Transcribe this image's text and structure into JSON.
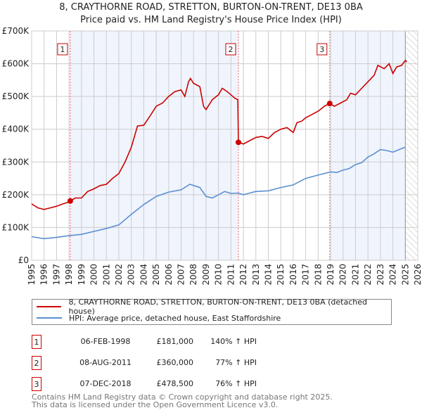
{
  "title_line1": "8, CRAYTHORNE ROAD, STRETTON, BURTON-ON-TRENT, DE13 0BA",
  "title_line2": "Price paid vs. HM Land Registry's House Price Index (HPI)",
  "legend": [
    {
      "label": "8, CRAYTHORNE ROAD, STRETTON, BURTON-ON-TRENT, DE13 0BA (detached house)",
      "color": "#cc0000"
    },
    {
      "label": "HPI: Average price, detached house, East Staffordshire",
      "color": "#5b8fd0"
    }
  ],
  "sales": [
    {
      "num": "1",
      "date": "06-FEB-1998",
      "price": "£181,000",
      "hpi": "140% ↑ HPI"
    },
    {
      "num": "2",
      "date": "08-AUG-2011",
      "price": "£360,000",
      "hpi": "77% ↑ HPI"
    },
    {
      "num": "3",
      "date": "07-DEC-2018",
      "price": "£478,500",
      "hpi": "76% ↑ HPI"
    }
  ],
  "footer_line1": "Contains HM Land Registry data © Crown copyright and database right 2025.",
  "footer_line2": "This data is licensed under the Open Government Licence v3.0.",
  "chart_data": {
    "type": "line",
    "xlim": [
      1995,
      2026
    ],
    "ylim": [
      0,
      700000
    ],
    "yticks": [
      0,
      100000,
      200000,
      300000,
      400000,
      500000,
      600000,
      700000
    ],
    "ytick_labels": [
      "£0",
      "£100K",
      "£200K",
      "£300K",
      "£400K",
      "£500K",
      "£600K",
      "£700K"
    ],
    "xticks": [
      1995,
      1996,
      1997,
      1998,
      1999,
      2000,
      2001,
      2002,
      2003,
      2004,
      2005,
      2006,
      2007,
      2008,
      2009,
      2010,
      2011,
      2012,
      2013,
      2014,
      2015,
      2016,
      2017,
      2018,
      2019,
      2020,
      2021,
      2022,
      2023,
      2024,
      2025,
      2026
    ],
    "grid": true,
    "hatch_from": 2025,
    "shaded_ranges": [
      [
        1998.1,
        2011.6
      ],
      [
        2018.93,
        2025
      ]
    ],
    "markers": [
      {
        "label": "1",
        "x": 1998.1,
        "y": 181000
      },
      {
        "label": "2",
        "x": 2011.6,
        "y": 360000
      },
      {
        "label": "3",
        "x": 2018.93,
        "y": 478500
      }
    ],
    "series": [
      {
        "name": "8, CRAYTHORNE ROAD (detached house)",
        "color": "#cc0000",
        "x": [
          1995,
          1995.5,
          1996,
          1996.5,
          1997,
          1997.5,
          1998,
          1998.1,
          1998.5,
          1999,
          1999.5,
          2000,
          2000.5,
          2001,
          2001.5,
          2002,
          2002.5,
          2003,
          2003.5,
          2004,
          2004.5,
          2005,
          2005.5,
          2006,
          2006.5,
          2007,
          2007.3,
          2007.6,
          2007.75,
          2008,
          2008.5,
          2008.8,
          2009,
          2009.5,
          2010,
          2010.3,
          2010.7,
          2011.3,
          2011.55,
          2011.6,
          2012,
          2012.5,
          2013,
          2013.5,
          2014,
          2014.5,
          2015,
          2015.5,
          2016,
          2016.3,
          2016.7,
          2017,
          2017.5,
          2018,
          2018.5,
          2018.93,
          2019.3,
          2019.8,
          2020.3,
          2020.6,
          2021,
          2021.5,
          2022,
          2022.5,
          2022.8,
          2023.3,
          2023.7,
          2024,
          2024.3,
          2024.7,
          2025,
          2025.1
        ],
        "y": [
          172000,
          160000,
          155000,
          160000,
          165000,
          172000,
          178000,
          181000,
          190000,
          190000,
          210000,
          218000,
          228000,
          232000,
          250000,
          265000,
          300000,
          345000,
          410000,
          412000,
          440000,
          470000,
          480000,
          500000,
          515000,
          520000,
          500000,
          545000,
          555000,
          540000,
          530000,
          470000,
          460000,
          490000,
          505000,
          525000,
          515000,
          495000,
          490000,
          360000,
          355000,
          365000,
          375000,
          378000,
          372000,
          390000,
          400000,
          405000,
          390000,
          420000,
          425000,
          435000,
          445000,
          455000,
          470000,
          478500,
          470000,
          480000,
          490000,
          510000,
          505000,
          525000,
          545000,
          565000,
          595000,
          585000,
          600000,
          570000,
          590000,
          595000,
          610000,
          605000
        ]
      },
      {
        "name": "HPI: Average price, detached house, East Staffordshire",
        "color": "#5b8fd0",
        "x": [
          1995,
          1996,
          1997,
          1998,
          1999,
          2000,
          2001,
          2002,
          2003,
          2004,
          2005,
          2006,
          2007,
          2007.7,
          2008.5,
          2009,
          2009.5,
          2010,
          2010.5,
          2011,
          2011.6,
          2012,
          2012.5,
          2013,
          2014,
          2015,
          2016,
          2016.5,
          2017,
          2018,
          2019,
          2019.5,
          2020,
          2020.5,
          2021,
          2021.5,
          2022,
          2022.5,
          2023,
          2023.5,
          2024,
          2024.5,
          2025
        ],
        "y": [
          72000,
          66000,
          70000,
          75000,
          79000,
          88000,
          97000,
          108000,
          140000,
          170000,
          195000,
          208000,
          215000,
          232000,
          222000,
          195000,
          190000,
          200000,
          210000,
          204000,
          205000,
          200000,
          205000,
          210000,
          212000,
          222000,
          230000,
          240000,
          250000,
          260000,
          270000,
          268000,
          275000,
          280000,
          292000,
          298000,
          315000,
          325000,
          338000,
          335000,
          330000,
          338000,
          345000
        ]
      }
    ]
  }
}
